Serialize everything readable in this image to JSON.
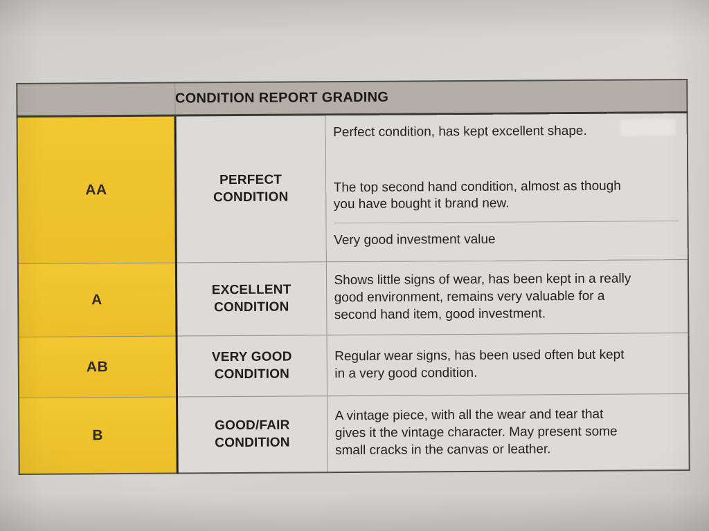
{
  "colors": {
    "page-bg": "#d6d4d1",
    "cell-bg": "#dcdbd8",
    "header-bg": "#b3afa8",
    "grade-yellow": "#eec52d",
    "text": "#232119",
    "border-dark": "#2a2825",
    "border-light": "#94918b"
  },
  "table": {
    "title": "CONDITION REPORT GRADING",
    "rows": [
      {
        "grade": "AA",
        "label": "PERFECT\nCONDITION",
        "description": [
          "Perfect condition, has kept excellent shape.",
          "The top second hand condition, almost as though\nyou have bought it brand new.",
          "Very good investment value"
        ]
      },
      {
        "grade": "A",
        "label": "EXCELLENT\nCONDITION",
        "description": [
          "Shows little signs of wear, has been kept in a really\ngood environment, remains very valuable for a\nsecond hand item, good investment."
        ]
      },
      {
        "grade": "AB",
        "label": "VERY GOOD\nCONDITION",
        "description": [
          "Regular wear signs, has been used often but kept\nin a very good condition."
        ]
      },
      {
        "grade": "B",
        "label": "GOOD/FAIR\nCONDITION",
        "description": [
          "A vintage piece, with all the wear and tear that\ngives it the vintage character. May present some\nsmall cracks in the canvas or leather."
        ]
      }
    ]
  }
}
